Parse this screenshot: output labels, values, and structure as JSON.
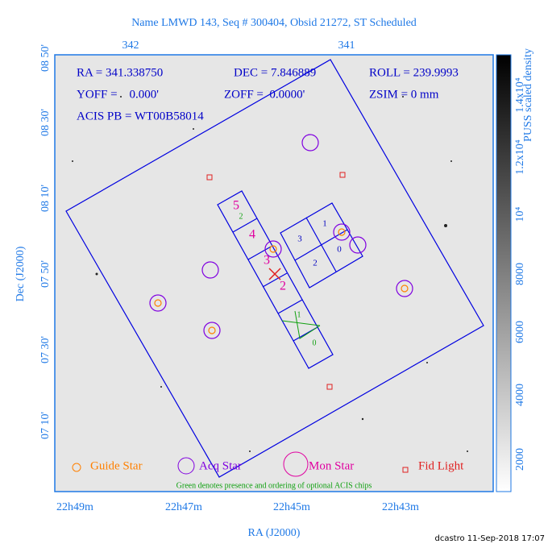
{
  "header": {
    "title": "Name LMWD 143, Seq # 300404, Obsid 21272, ST Scheduled"
  },
  "axes": {
    "top_ticks": [
      "342",
      "341"
    ],
    "left_ticks": [
      "08 50'",
      "08 30'",
      "08 10'",
      "07 50'",
      "07 30'",
      "07 10'"
    ],
    "bottom_ticks": [
      "22h49m",
      "22h47m",
      "22h45m",
      "22h43m"
    ],
    "x_label": "RA (J2000)",
    "y_label": "Dec (J2000)"
  },
  "colorbar": {
    "ticks": [
      "2000",
      "4000",
      "6000",
      "8000",
      "10⁴",
      "1.2x10⁴",
      "1.4x10⁴"
    ],
    "label": "PUSS scaled density"
  },
  "info": [
    "RA = 341.338750",
    "DEC = 7.846889",
    "ROLL = 239.9993",
    "YOFF =    0.000'",
    "ZOFF =  0.0000'",
    "ZSIM = 0 mm",
    "ACIS PB = WT00B58014"
  ],
  "chips": {
    "s_array": [
      "5",
      "4",
      "3",
      "2"
    ],
    "optional": [
      "2",
      "1",
      "0"
    ],
    "i_array": [
      "1",
      "0",
      "3",
      "2"
    ]
  },
  "legend": [
    "Guide Star",
    "Acq Star",
    "Mon Star",
    "Fid Light"
  ],
  "note": "Green denotes presence and ordering of optional ACIS chips",
  "footer": "dcastro 11-Sep-2018 17:07"
}
